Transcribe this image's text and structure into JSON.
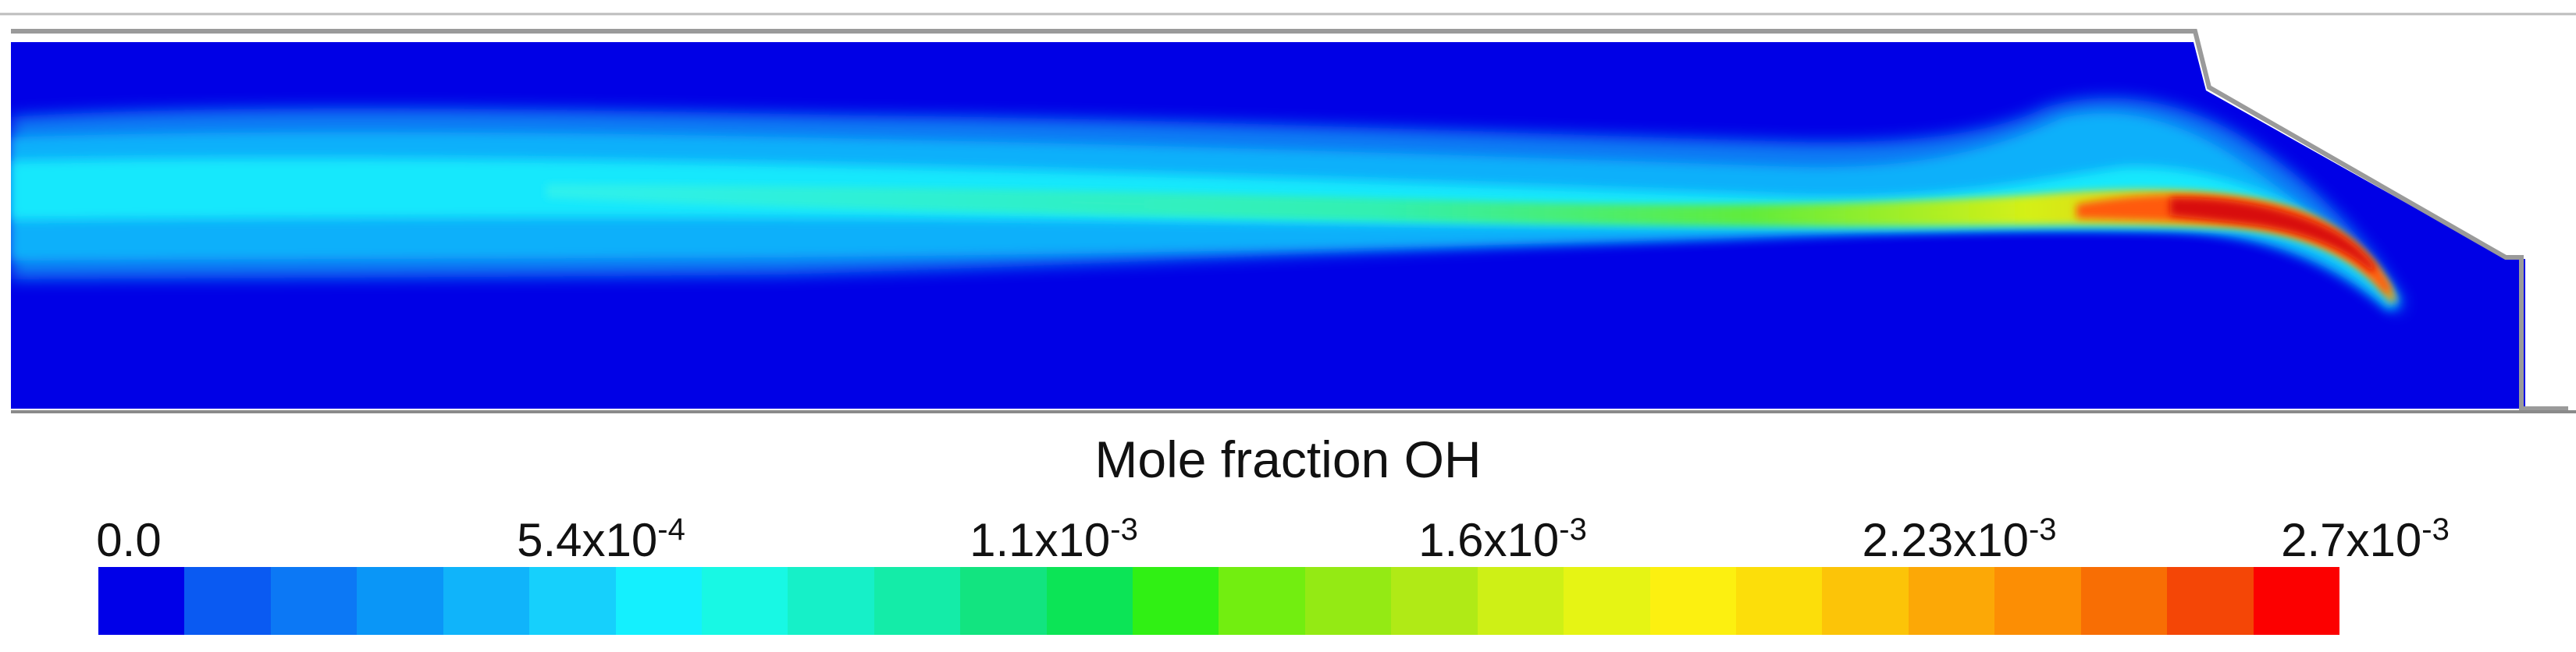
{
  "colorbar": {
    "title": "Mole fraction OH",
    "ticks": [
      {
        "mantissa": "0.0",
        "exp": ""
      },
      {
        "mantissa": "5.4x10",
        "exp": "-4"
      },
      {
        "mantissa": "1.1x10",
        "exp": "-3"
      },
      {
        "mantissa": "1.6x10",
        "exp": "-3"
      },
      {
        "mantissa": "2.23x10",
        "exp": "-3"
      },
      {
        "mantissa": "2.7x10",
        "exp": "-3"
      }
    ],
    "min": 0.0,
    "max": 0.0027,
    "colors": [
      "#0000e8",
      "#0a5af2",
      "#0c78f5",
      "#0a96f7",
      "#10b4fa",
      "#16d0fc",
      "#14f0fe",
      "#18f8e4",
      "#16f0c8",
      "#14eca8",
      "#12e480",
      "#0ce456",
      "#30f014",
      "#72ee10",
      "#94ea14",
      "#b0ea16",
      "#cef016",
      "#e6f414",
      "#fcf010",
      "#fcde0a",
      "#fcc408",
      "#fca806",
      "#fc8e04",
      "#f86e04",
      "#f44606",
      "#fc0000"
    ]
  },
  "field": {
    "background_color": "#0000e6",
    "peak_color": "#d80c08"
  }
}
